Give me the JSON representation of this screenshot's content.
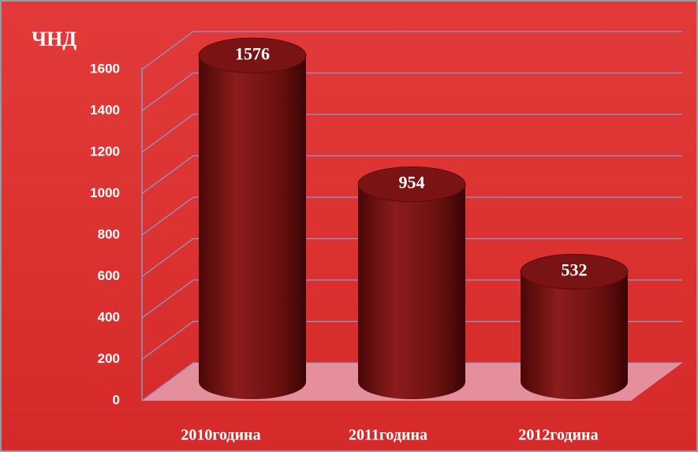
{
  "chart_data": {
    "type": "bar3d-cylinder",
    "title": "ЧНД",
    "categories": [
      "2010година",
      "2011година",
      "2012година"
    ],
    "values": [
      1576,
      954,
      532
    ],
    "color": "#7a1414",
    "ylim": [
      0,
      1600
    ],
    "yticks": [
      0,
      200,
      400,
      600,
      800,
      1000,
      1200,
      1400,
      1600
    ],
    "grid": true
  }
}
